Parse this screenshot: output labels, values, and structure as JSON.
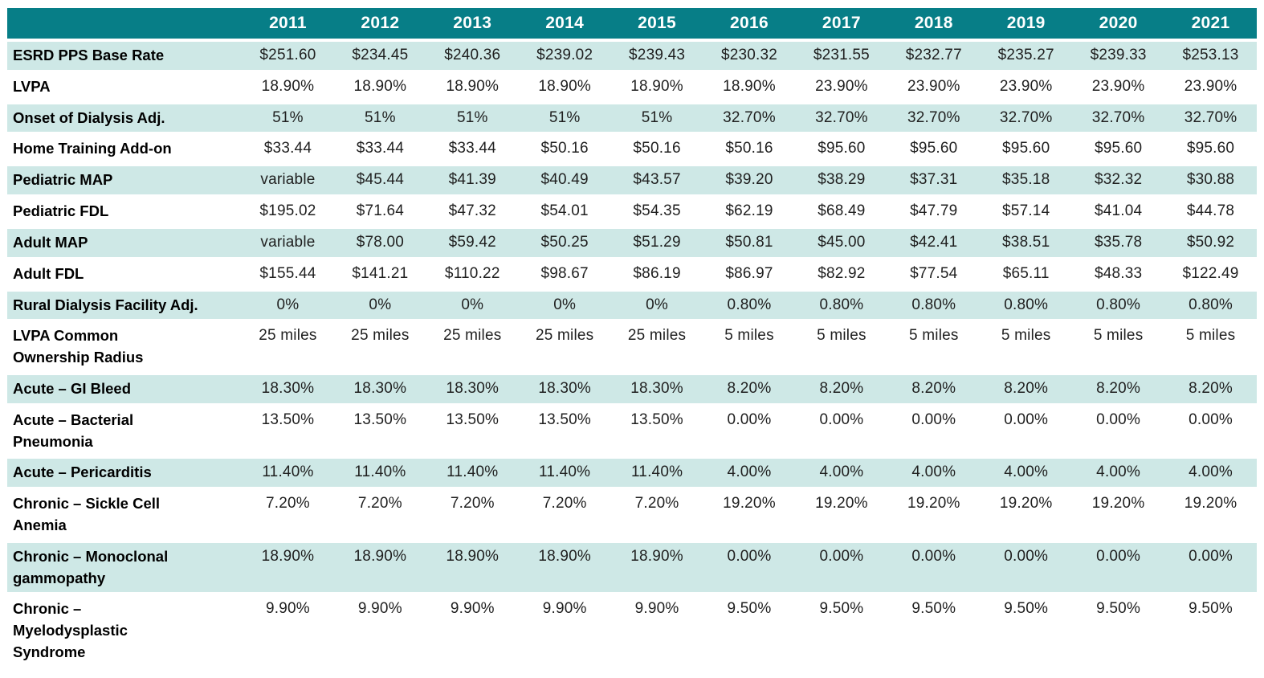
{
  "colors": {
    "header_bg": "#077e87",
    "header_text": "#ffffff",
    "row_alt_bg": "#cee8e6",
    "row_bg": "#ffffff",
    "label_text": "#000000",
    "value_text": "#1f1f1f"
  },
  "chart_data": {
    "type": "table",
    "title": "",
    "columns": [
      "2011",
      "2012",
      "2013",
      "2014",
      "2015",
      "2016",
      "2017",
      "2018",
      "2019",
      "2020",
      "2021"
    ],
    "rows": [
      {
        "label": "ESRD PPS Base Rate",
        "values": [
          "$251.60",
          "$234.45",
          "$240.36",
          "$239.02",
          "$239.43",
          "$230.32",
          "$231.55",
          "$232.77",
          "$235.27",
          "$239.33",
          "$253.13"
        ]
      },
      {
        "label": "LVPA",
        "values": [
          "18.90%",
          "18.90%",
          "18.90%",
          "18.90%",
          "18.90%",
          "18.90%",
          "23.90%",
          "23.90%",
          "23.90%",
          "23.90%",
          "23.90%"
        ]
      },
      {
        "label": "Onset of Dialysis Adj.",
        "values": [
          "51%",
          "51%",
          "51%",
          "51%",
          "51%",
          "32.70%",
          "32.70%",
          "32.70%",
          "32.70%",
          "32.70%",
          "32.70%"
        ]
      },
      {
        "label": "Home Training Add-on",
        "values": [
          "$33.44",
          "$33.44",
          "$33.44",
          "$50.16",
          "$50.16",
          "$50.16",
          "$95.60",
          "$95.60",
          "$95.60",
          "$95.60",
          "$95.60"
        ]
      },
      {
        "label": "Pediatric MAP",
        "values": [
          "variable",
          "$45.44",
          "$41.39",
          "$40.49",
          "$43.57",
          "$39.20",
          "$38.29",
          "$37.31",
          "$35.18",
          "$32.32",
          "$30.88"
        ]
      },
      {
        "label": "Pediatric FDL",
        "values": [
          "$195.02",
          "$71.64",
          "$47.32",
          "$54.01",
          "$54.35",
          "$62.19",
          "$68.49",
          "$47.79",
          "$57.14",
          "$41.04",
          "$44.78"
        ]
      },
      {
        "label": "Adult MAP",
        "values": [
          "variable",
          "$78.00",
          "$59.42",
          "$50.25",
          "$51.29",
          "$50.81",
          "$45.00",
          "$42.41",
          "$38.51",
          "$35.78",
          "$50.92"
        ]
      },
      {
        "label": "Adult FDL",
        "values": [
          "$155.44",
          "$141.21",
          "$110.22",
          "$98.67",
          "$86.19",
          "$86.97",
          "$82.92",
          "$77.54",
          "$65.11",
          "$48.33",
          "$122.49"
        ]
      },
      {
        "label": "Rural Dialysis Facility Adj.",
        "values": [
          "0%",
          "0%",
          "0%",
          "0%",
          "0%",
          "0.80%",
          "0.80%",
          "0.80%",
          "0.80%",
          "0.80%",
          "0.80%"
        ]
      },
      {
        "label": "LVPA Common\nOwnership Radius",
        "values": [
          "25 miles",
          "25 miles",
          "25 miles",
          "25 miles",
          "25 miles",
          "5 miles",
          "5 miles",
          "5 miles",
          "5 miles",
          "5 miles",
          "5 miles"
        ]
      },
      {
        "label": "Acute – GI Bleed",
        "values": [
          "18.30%",
          "18.30%",
          "18.30%",
          "18.30%",
          "18.30%",
          "8.20%",
          "8.20%",
          "8.20%",
          "8.20%",
          "8.20%",
          "8.20%"
        ]
      },
      {
        "label": "Acute – Bacterial\nPneumonia",
        "values": [
          "13.50%",
          "13.50%",
          "13.50%",
          "13.50%",
          "13.50%",
          "0.00%",
          "0.00%",
          "0.00%",
          "0.00%",
          "0.00%",
          "0.00%"
        ]
      },
      {
        "label": "Acute – Pericarditis",
        "values": [
          "11.40%",
          "11.40%",
          "11.40%",
          "11.40%",
          "11.40%",
          "4.00%",
          "4.00%",
          "4.00%",
          "4.00%",
          "4.00%",
          "4.00%"
        ]
      },
      {
        "label": "Chronic – Sickle Cell\nAnemia",
        "values": [
          "7.20%",
          "7.20%",
          "7.20%",
          "7.20%",
          "7.20%",
          "19.20%",
          "19.20%",
          "19.20%",
          "19.20%",
          "19.20%",
          "19.20%"
        ]
      },
      {
        "label": "Chronic – Monoclonal\ngammopathy",
        "values": [
          "18.90%",
          "18.90%",
          "18.90%",
          "18.90%",
          "18.90%",
          "0.00%",
          "0.00%",
          "0.00%",
          "0.00%",
          "0.00%",
          "0.00%"
        ]
      },
      {
        "label": "Chronic –\nMyelodysplastic\nSyndrome",
        "values": [
          "9.90%",
          "9.90%",
          "9.90%",
          "9.90%",
          "9.90%",
          "9.50%",
          "9.50%",
          "9.50%",
          "9.50%",
          "9.50%",
          "9.50%"
        ]
      }
    ]
  }
}
